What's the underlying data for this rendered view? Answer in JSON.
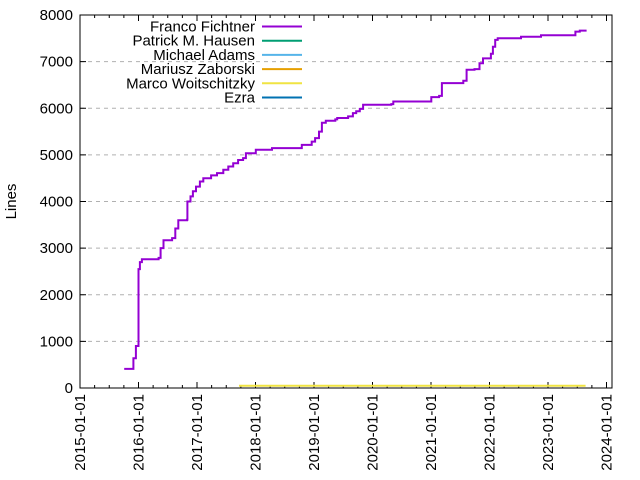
{
  "chart_data": {
    "type": "line",
    "title": "",
    "xlabel": "",
    "ylabel": "Lines",
    "ylim": [
      0,
      8000
    ],
    "xlim_years": [
      2015.0,
      2024.1
    ],
    "grid": "horizontal-dashed",
    "legend_position": "top-left-inside",
    "y_tick_labels": [
      "0",
      "1000",
      "2000",
      "3000",
      "4000",
      "5000",
      "6000",
      "7000",
      "8000"
    ],
    "y_tick_values": [
      0,
      1000,
      2000,
      3000,
      4000,
      5000,
      6000,
      7000,
      8000
    ],
    "x_tick_labels": [
      "2015-01-01",
      "2016-01-01",
      "2017-01-01",
      "2018-01-01",
      "2019-01-01",
      "2020-01-01",
      "2021-01-01",
      "2022-01-01",
      "2023-01-01",
      "2024-01-01"
    ],
    "x_minor_tick_interval_years": 0.25,
    "colors": {
      "axis": "#000000",
      "grid": "#b0b0b0",
      "background": "#ffffff",
      "text": "#000000"
    },
    "series": [
      {
        "name": "Franco Fichtner",
        "color": "#9400d3",
        "style": "steps",
        "points": [
          [
            "2015-10-03",
            410
          ],
          [
            "2015-11-30",
            640
          ],
          [
            "2015-12-15",
            900
          ],
          [
            "2016-01-01",
            2550
          ],
          [
            "2016-01-10",
            2700
          ],
          [
            "2016-01-22",
            2760
          ],
          [
            "2016-05-05",
            2790
          ],
          [
            "2016-05-17",
            3000
          ],
          [
            "2016-06-05",
            3170
          ],
          [
            "2016-07-28",
            3215
          ],
          [
            "2016-08-18",
            3420
          ],
          [
            "2016-09-06",
            3600
          ],
          [
            "2016-10-30",
            3610
          ],
          [
            "2016-11-02",
            4000
          ],
          [
            "2016-11-21",
            4110
          ],
          [
            "2016-12-06",
            4220
          ],
          [
            "2016-12-25",
            4320
          ],
          [
            "2017-01-19",
            4430
          ],
          [
            "2017-02-10",
            4500
          ],
          [
            "2017-03-28",
            4560
          ],
          [
            "2017-05-04",
            4610
          ],
          [
            "2017-06-13",
            4680
          ],
          [
            "2017-07-14",
            4750
          ],
          [
            "2017-08-14",
            4820
          ],
          [
            "2017-09-14",
            4890
          ],
          [
            "2017-10-15",
            4930
          ],
          [
            "2017-11-02",
            5035
          ],
          [
            "2018-01-03",
            5110
          ],
          [
            "2018-04-13",
            5145
          ],
          [
            "2018-10-16",
            5215
          ],
          [
            "2018-12-17",
            5285
          ],
          [
            "2019-01-08",
            5360
          ],
          [
            "2019-02-02",
            5500
          ],
          [
            "2019-02-20",
            5690
          ],
          [
            "2019-03-14",
            5730
          ],
          [
            "2019-05-12",
            5760
          ],
          [
            "2019-05-24",
            5790
          ],
          [
            "2019-07-31",
            5825
          ],
          [
            "2019-08-31",
            5895
          ],
          [
            "2019-09-21",
            5935
          ],
          [
            "2019-10-13",
            5985
          ],
          [
            "2019-11-03",
            6075
          ],
          [
            "2020-04-27",
            6090
          ],
          [
            "2020-05-09",
            6145
          ],
          [
            "2021-01-03",
            6240
          ],
          [
            "2021-02-21",
            6265
          ],
          [
            "2021-03-08",
            6540
          ],
          [
            "2021-07-20",
            6590
          ],
          [
            "2021-08-10",
            6825
          ],
          [
            "2021-09-29",
            6840
          ],
          [
            "2021-10-30",
            6965
          ],
          [
            "2021-11-21",
            7070
          ],
          [
            "2022-01-10",
            7170
          ],
          [
            "2022-01-22",
            7320
          ],
          [
            "2022-02-06",
            7465
          ],
          [
            "2022-02-22",
            7500
          ],
          [
            "2022-07-15",
            7535
          ],
          [
            "2022-11-18",
            7565
          ],
          [
            "2023-06-20",
            7645
          ],
          [
            "2023-07-17",
            7665
          ],
          [
            "2023-08-29",
            7665
          ]
        ]
      },
      {
        "name": "Patrick M. Hausen",
        "color": "#009e73",
        "style": "steps",
        "points": []
      },
      {
        "name": "Michael Adams",
        "color": "#56b4e9",
        "style": "steps",
        "points": []
      },
      {
        "name": "Mariusz Zaborski",
        "color": "#e69f00",
        "style": "steps",
        "points": []
      },
      {
        "name": "Marco Woitschitzky",
        "color": "#f0e442",
        "style": "steps",
        "points": [
          [
            "2017-09-20",
            50
          ],
          [
            "2023-08-23",
            50
          ]
        ]
      },
      {
        "name": "Ezra",
        "color": "#0072b2",
        "style": "steps",
        "points": []
      }
    ]
  }
}
